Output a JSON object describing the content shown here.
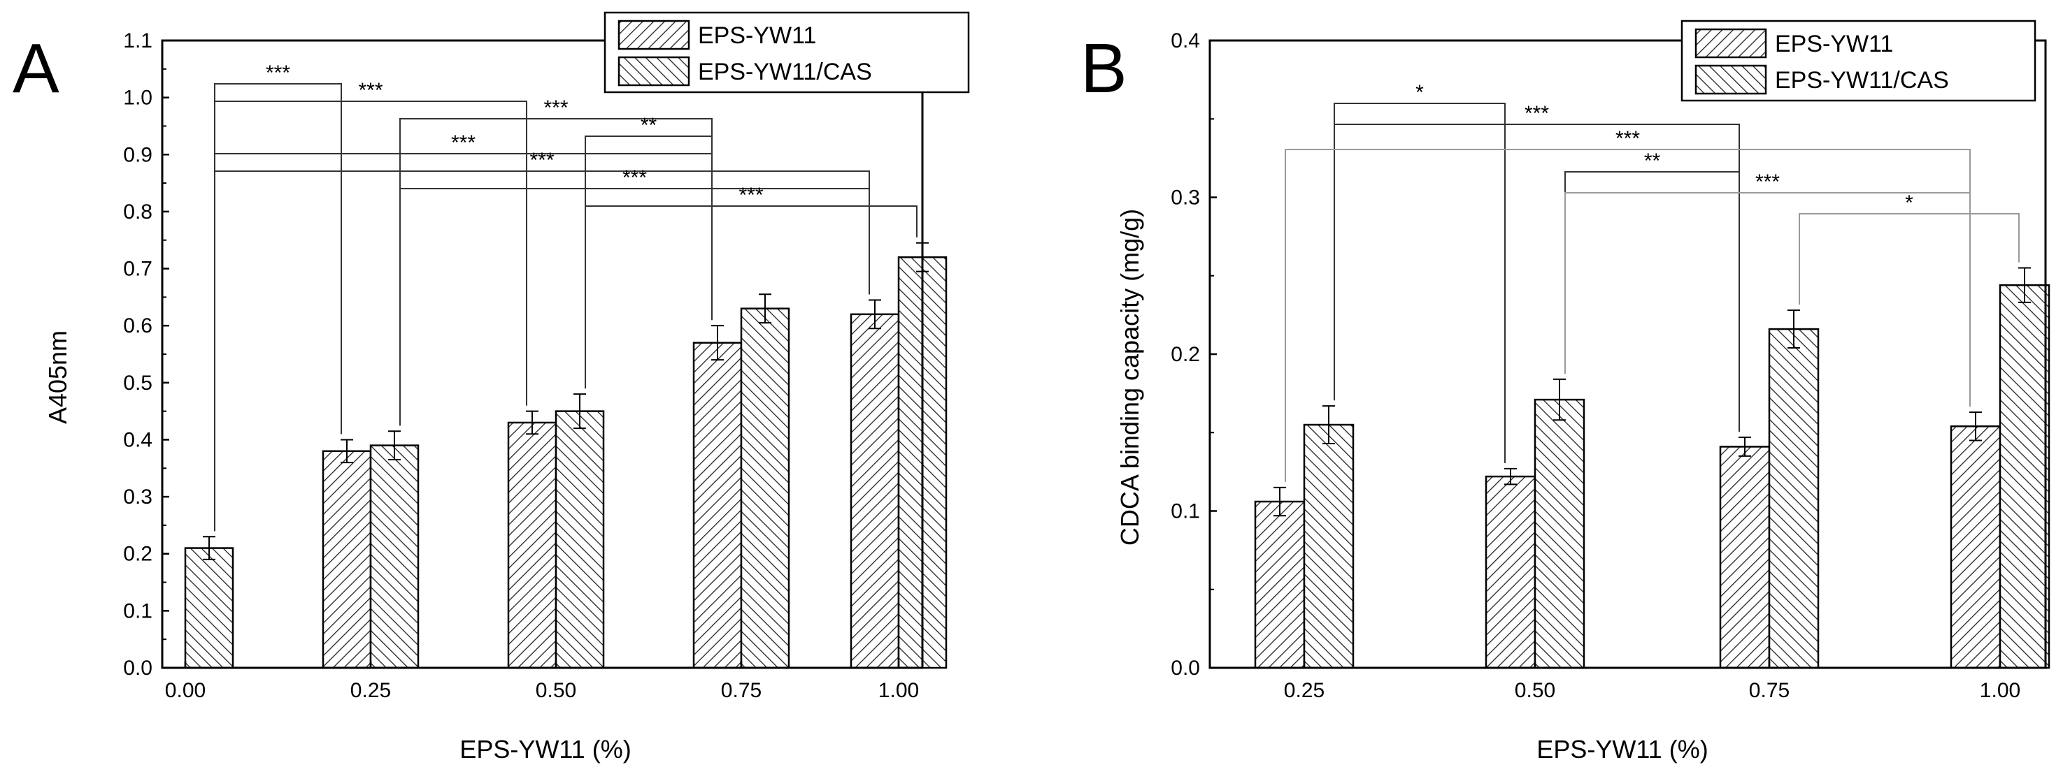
{
  "chart_data": [
    {
      "panel": "A",
      "type": "bar",
      "xlabel": "EPS-YW11 (%)",
      "ylabel": "A405nm",
      "ylim": [
        0,
        1.1
      ],
      "yticks": [
        "0.0",
        "0.1",
        "0.2",
        "0.3",
        "0.4",
        "0.5",
        "0.6",
        "0.7",
        "0.8",
        "0.9",
        "1.0",
        "1.1"
      ],
      "categories": [
        "0.00",
        "0.25",
        "0.50",
        "0.75",
        "1.00"
      ],
      "series": [
        {
          "name": "EPS-YW11",
          "values": [
            null,
            0.38,
            0.43,
            0.57,
            0.62
          ],
          "errors": [
            null,
            0.02,
            0.02,
            0.03,
            0.025
          ]
        },
        {
          "name": "EPS-YW11/CAS",
          "values": [
            0.21,
            0.39,
            0.45,
            0.63,
            0.72
          ],
          "errors": [
            0.02,
            0.025,
            0.03,
            0.025,
            0.025
          ]
        }
      ],
      "legend": [
        "EPS-YW11",
        "EPS-YW11/CAS"
      ],
      "significance": [
        {
          "label": "***",
          "from": [
            0,
            1
          ],
          "to": [
            1,
            0
          ]
        },
        {
          "label": "***",
          "from": [
            0,
            1
          ],
          "to": [
            2,
            0
          ]
        },
        {
          "label": "***",
          "from": [
            1,
            1
          ],
          "to": [
            3,
            0
          ]
        },
        {
          "label": "**",
          "from": [
            2,
            1
          ],
          "to": [
            3,
            0
          ]
        },
        {
          "label": "***",
          "from": [
            0,
            1
          ],
          "to": [
            3,
            0
          ]
        },
        {
          "label": "***",
          "from": [
            0,
            1
          ],
          "to": [
            4,
            0
          ]
        },
        {
          "label": "***",
          "from": [
            1,
            1
          ],
          "to": [
            4,
            0
          ]
        },
        {
          "label": "***",
          "from": [
            2,
            1
          ],
          "to": [
            4,
            1
          ]
        }
      ]
    },
    {
      "panel": "B",
      "type": "bar",
      "xlabel": "EPS-YW11 (%)",
      "ylabel": "CDCA binding capacity (mg/g)",
      "ylim": [
        0,
        0.4
      ],
      "yticks": [
        "0.0",
        "0.1",
        "0.2",
        "0.3",
        "0.4"
      ],
      "categories": [
        "0.25",
        "0.50",
        "0.75",
        "1.00"
      ],
      "series": [
        {
          "name": "EPS-YW11",
          "values": [
            0.106,
            0.122,
            0.141,
            0.154
          ],
          "errors": [
            0.009,
            0.005,
            0.006,
            0.009
          ]
        },
        {
          "name": "EPS-YW11/CAS",
          "values": [
            0.155,
            0.171,
            0.216,
            0.244
          ],
          "errors": [
            0.012,
            0.013,
            0.012,
            0.011
          ]
        }
      ],
      "legend": [
        "EPS-YW11",
        "EPS-YW11/CAS"
      ],
      "significance": [
        {
          "label": "*",
          "from": [
            0,
            1
          ],
          "to": [
            1,
            0
          ]
        },
        {
          "label": "***",
          "from": [
            0,
            1
          ],
          "to": [
            2,
            0
          ]
        },
        {
          "label": "***",
          "from": [
            0,
            0
          ],
          "to": [
            3,
            0
          ],
          "light": true
        },
        {
          "label": "**",
          "from": [
            1,
            1
          ],
          "to": [
            2,
            0
          ]
        },
        {
          "label": "***",
          "from": [
            1,
            1
          ],
          "to": [
            3,
            0
          ],
          "light": true
        },
        {
          "label": "*",
          "from": [
            2,
            1
          ],
          "to": [
            3,
            1
          ],
          "light": true
        }
      ]
    }
  ]
}
